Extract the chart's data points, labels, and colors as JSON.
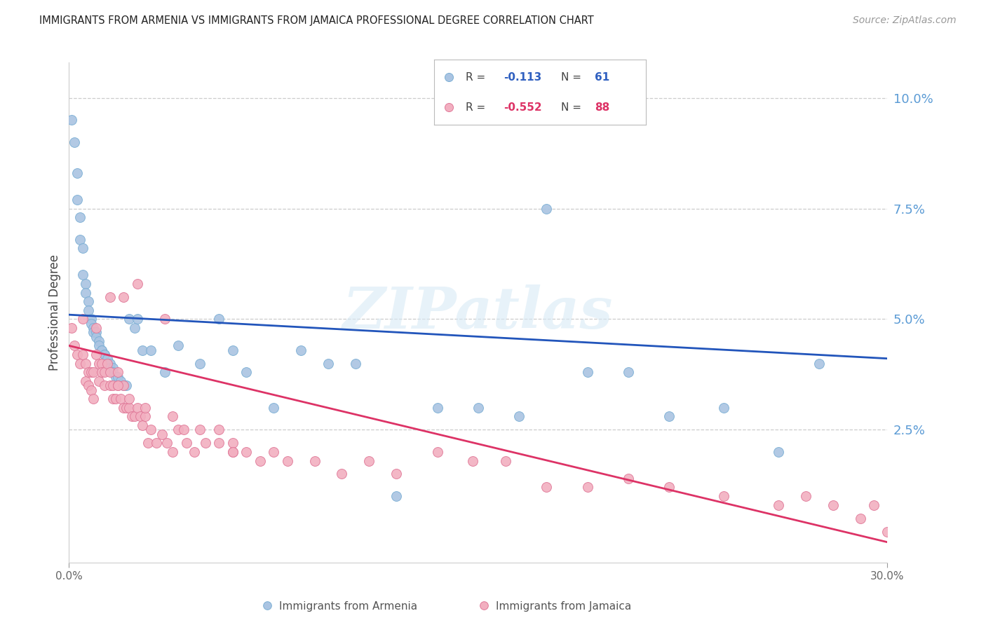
{
  "title": "IMMIGRANTS FROM ARMENIA VS IMMIGRANTS FROM JAMAICA PROFESSIONAL DEGREE CORRELATION CHART",
  "source": "Source: ZipAtlas.com",
  "ylabel": "Professional Degree",
  "right_yticks": [
    "10.0%",
    "7.5%",
    "5.0%",
    "2.5%"
  ],
  "right_ytick_vals": [
    0.1,
    0.075,
    0.05,
    0.025
  ],
  "xlim": [
    0.0,
    0.3
  ],
  "ylim": [
    -0.005,
    0.108
  ],
  "armenia_color": "#aac4e2",
  "armenia_edge": "#7bafd4",
  "jamaica_color": "#f2afc0",
  "jamaica_edge": "#e07898",
  "line_armenia": "#2255bb",
  "line_jamaica": "#dd3366",
  "legend_r_armenia": "-0.113",
  "legend_n_armenia": "61",
  "legend_r_jamaica": "-0.552",
  "legend_n_jamaica": "88",
  "watermark": "ZIPatlas",
  "watermark_color": "#d8eaf5",
  "armenia_x": [
    0.001,
    0.002,
    0.003,
    0.003,
    0.004,
    0.004,
    0.005,
    0.005,
    0.006,
    0.006,
    0.007,
    0.007,
    0.008,
    0.008,
    0.009,
    0.009,
    0.01,
    0.01,
    0.011,
    0.011,
    0.012,
    0.012,
    0.013,
    0.013,
    0.014,
    0.014,
    0.015,
    0.015,
    0.016,
    0.016,
    0.017,
    0.018,
    0.019,
    0.02,
    0.021,
    0.022,
    0.024,
    0.025,
    0.027,
    0.03,
    0.035,
    0.04,
    0.048,
    0.055,
    0.06,
    0.065,
    0.075,
    0.085,
    0.095,
    0.105,
    0.12,
    0.135,
    0.15,
    0.165,
    0.175,
    0.19,
    0.205,
    0.22,
    0.24,
    0.26,
    0.275
  ],
  "armenia_y": [
    0.095,
    0.09,
    0.083,
    0.077,
    0.073,
    0.068,
    0.066,
    0.06,
    0.058,
    0.056,
    0.054,
    0.052,
    0.05,
    0.049,
    0.048,
    0.047,
    0.047,
    0.046,
    0.045,
    0.044,
    0.043,
    0.043,
    0.042,
    0.042,
    0.041,
    0.04,
    0.04,
    0.039,
    0.039,
    0.038,
    0.037,
    0.037,
    0.036,
    0.035,
    0.035,
    0.05,
    0.048,
    0.05,
    0.043,
    0.043,
    0.038,
    0.044,
    0.04,
    0.05,
    0.043,
    0.038,
    0.03,
    0.043,
    0.04,
    0.04,
    0.01,
    0.03,
    0.03,
    0.028,
    0.075,
    0.038,
    0.038,
    0.028,
    0.03,
    0.02,
    0.04
  ],
  "jamaica_x": [
    0.001,
    0.002,
    0.003,
    0.004,
    0.005,
    0.005,
    0.006,
    0.006,
    0.007,
    0.007,
    0.008,
    0.008,
    0.009,
    0.009,
    0.01,
    0.01,
    0.011,
    0.011,
    0.012,
    0.012,
    0.013,
    0.013,
    0.014,
    0.015,
    0.015,
    0.016,
    0.016,
    0.017,
    0.018,
    0.018,
    0.019,
    0.02,
    0.02,
    0.021,
    0.022,
    0.023,
    0.024,
    0.025,
    0.026,
    0.027,
    0.028,
    0.029,
    0.03,
    0.032,
    0.034,
    0.036,
    0.038,
    0.04,
    0.043,
    0.046,
    0.05,
    0.055,
    0.06,
    0.065,
    0.07,
    0.075,
    0.08,
    0.09,
    0.1,
    0.11,
    0.12,
    0.135,
    0.148,
    0.16,
    0.175,
    0.19,
    0.205,
    0.22,
    0.24,
    0.26,
    0.27,
    0.28,
    0.29,
    0.295,
    0.3,
    0.042,
    0.055,
    0.06,
    0.035,
    0.025,
    0.015,
    0.02,
    0.028,
    0.038,
    0.048,
    0.06,
    0.022,
    0.018
  ],
  "jamaica_y": [
    0.048,
    0.044,
    0.042,
    0.04,
    0.05,
    0.042,
    0.04,
    0.036,
    0.038,
    0.035,
    0.038,
    0.034,
    0.038,
    0.032,
    0.048,
    0.042,
    0.04,
    0.036,
    0.04,
    0.038,
    0.038,
    0.035,
    0.04,
    0.038,
    0.035,
    0.035,
    0.032,
    0.032,
    0.038,
    0.035,
    0.032,
    0.035,
    0.03,
    0.03,
    0.03,
    0.028,
    0.028,
    0.03,
    0.028,
    0.026,
    0.028,
    0.022,
    0.025,
    0.022,
    0.024,
    0.022,
    0.02,
    0.025,
    0.022,
    0.02,
    0.022,
    0.022,
    0.02,
    0.02,
    0.018,
    0.02,
    0.018,
    0.018,
    0.015,
    0.018,
    0.015,
    0.02,
    0.018,
    0.018,
    0.012,
    0.012,
    0.014,
    0.012,
    0.01,
    0.008,
    0.01,
    0.008,
    0.005,
    0.008,
    0.002,
    0.025,
    0.025,
    0.022,
    0.05,
    0.058,
    0.055,
    0.055,
    0.03,
    0.028,
    0.025,
    0.02,
    0.032,
    0.035
  ]
}
